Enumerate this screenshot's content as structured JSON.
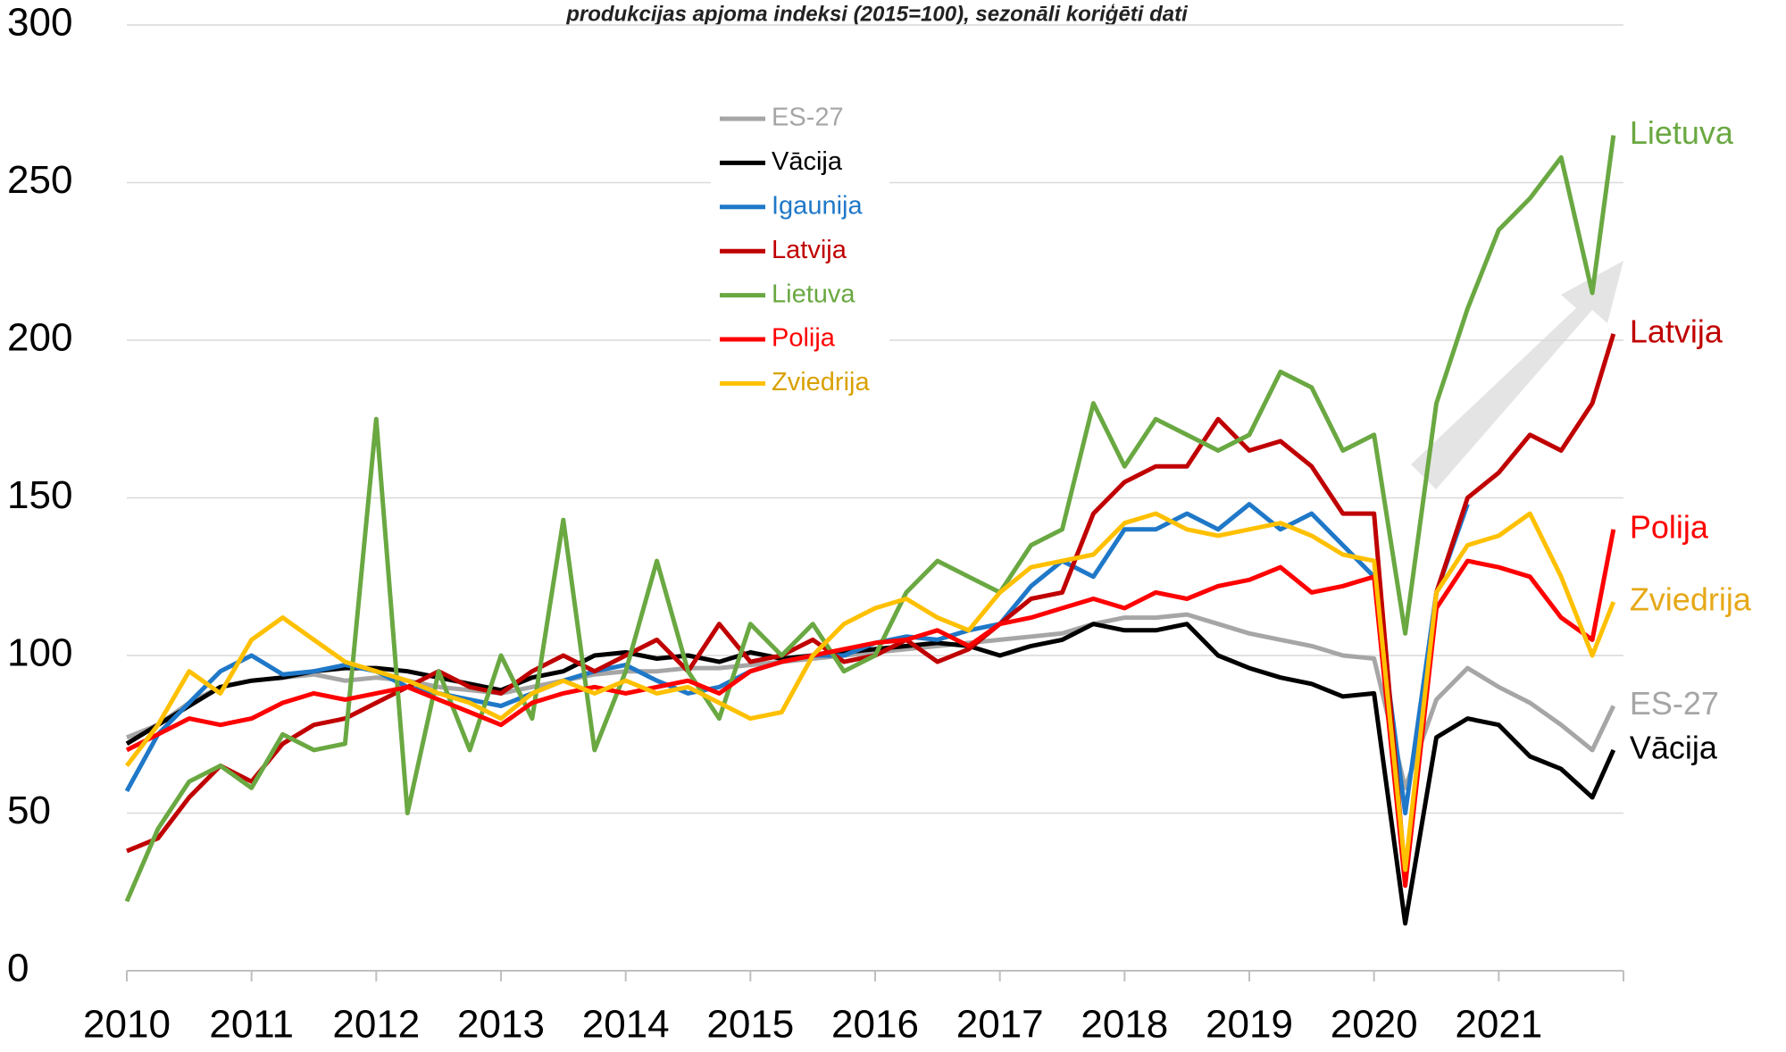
{
  "chart_data": {
    "type": "line",
    "title": "produkcijas apjoma indeksi (2015=100), sezonāli koriģēti dati",
    "x": [
      2010,
      2010.25,
      2010.5,
      2010.75,
      2011,
      2011.25,
      2011.5,
      2011.75,
      2012,
      2012.25,
      2012.5,
      2012.75,
      2013,
      2013.25,
      2013.5,
      2013.75,
      2014,
      2014.25,
      2014.5,
      2014.75,
      2015,
      2015.25,
      2015.5,
      2015.75,
      2016,
      2016.25,
      2016.5,
      2016.75,
      2017,
      2017.25,
      2017.5,
      2017.75,
      2018,
      2018.25,
      2018.5,
      2018.75,
      2019,
      2019.25,
      2019.5,
      2019.75,
      2020,
      2020.25,
      2020.5,
      2020.75,
      2021,
      2021.25,
      2021.5,
      2021.75,
      2021.92
    ],
    "xlim": [
      2010,
      2022
    ],
    "xticks": [
      2010,
      2011,
      2012,
      2013,
      2014,
      2015,
      2016,
      2017,
      2018,
      2019,
      2020,
      2021
    ],
    "ylim": [
      0,
      300
    ],
    "yticks": [
      0,
      50,
      100,
      150,
      200,
      250,
      300
    ],
    "grid": true,
    "legend": "top-left",
    "series": [
      {
        "name": "ES-27",
        "color": "#a6a6a6",
        "values": [
          74,
          78,
          85,
          90,
          92,
          93,
          94,
          92,
          93,
          92,
          90,
          89,
          88,
          90,
          92,
          94,
          95,
          95,
          96,
          96,
          97,
          98,
          99,
          100,
          101,
          102,
          103,
          104,
          105,
          106,
          107,
          110,
          112,
          112,
          113,
          110,
          107,
          105,
          103,
          100,
          99,
          58,
          86,
          96,
          90,
          85,
          78,
          70,
          84
        ]
      },
      {
        "name": "Vācija",
        "color": "#000000",
        "values": [
          72,
          78,
          84,
          90,
          92,
          93,
          95,
          96,
          96,
          95,
          93,
          91,
          89,
          93,
          95,
          100,
          101,
          99,
          100,
          98,
          101,
          99,
          100,
          101,
          102,
          103,
          104,
          103,
          100,
          103,
          105,
          110,
          108,
          108,
          110,
          100,
          96,
          93,
          91,
          87,
          88,
          15,
          74,
          80,
          78,
          68,
          64,
          55,
          70
        ]
      },
      {
        "name": "Igaunija",
        "color": "#1f78c8",
        "values": [
          57,
          75,
          85,
          95,
          100,
          94,
          95,
          97,
          95,
          90,
          88,
          86,
          84,
          88,
          92,
          95,
          97,
          92,
          88,
          90,
          95,
          98,
          100,
          100,
          104,
          106,
          105,
          108,
          110,
          122,
          130,
          125,
          140,
          140,
          145,
          140,
          148,
          140,
          145,
          135,
          125,
          50,
          120,
          148,
          null,
          null,
          null,
          null,
          null
        ]
      },
      {
        "name": "Latvija",
        "color": "#c00000",
        "values": [
          38,
          42,
          55,
          65,
          60,
          72,
          78,
          80,
          85,
          90,
          95,
          90,
          88,
          95,
          100,
          95,
          100,
          105,
          95,
          110,
          98,
          100,
          105,
          98,
          100,
          105,
          98,
          102,
          110,
          118,
          120,
          145,
          155,
          160,
          160,
          175,
          165,
          168,
          160,
          145,
          145,
          30,
          120,
          150,
          158,
          170,
          165,
          180,
          202
        ]
      },
      {
        "name": "Lietuva",
        "color": "#6aa842",
        "values": [
          22,
          45,
          60,
          65,
          58,
          75,
          70,
          72,
          175,
          50,
          95,
          70,
          100,
          80,
          143,
          70,
          95,
          130,
          95,
          80,
          110,
          100,
          110,
          95,
          100,
          120,
          130,
          125,
          120,
          135,
          140,
          180,
          160,
          175,
          170,
          165,
          170,
          190,
          185,
          165,
          170,
          107,
          180,
          210,
          235,
          245,
          258,
          215,
          265
        ]
      },
      {
        "name": "Polija",
        "color": "#ff0000",
        "values": [
          70,
          75,
          80,
          78,
          80,
          85,
          88,
          86,
          88,
          90,
          86,
          82,
          78,
          85,
          88,
          90,
          88,
          90,
          92,
          88,
          95,
          98,
          100,
          102,
          104,
          105,
          108,
          103,
          110,
          112,
          115,
          118,
          115,
          120,
          118,
          122,
          124,
          128,
          120,
          122,
          125,
          27,
          115,
          130,
          128,
          125,
          112,
          105,
          140
        ]
      },
      {
        "name": "Zviedrija",
        "color": "#ffc000",
        "values": [
          65,
          78,
          95,
          88,
          105,
          112,
          105,
          98,
          95,
          92,
          88,
          85,
          80,
          88,
          92,
          88,
          92,
          88,
          90,
          85,
          80,
          82,
          100,
          110,
          115,
          118,
          112,
          108,
          120,
          128,
          130,
          132,
          142,
          145,
          140,
          138,
          140,
          142,
          138,
          132,
          130,
          32,
          120,
          135,
          138,
          145,
          125,
          100,
          117
        ]
      }
    ]
  }
}
